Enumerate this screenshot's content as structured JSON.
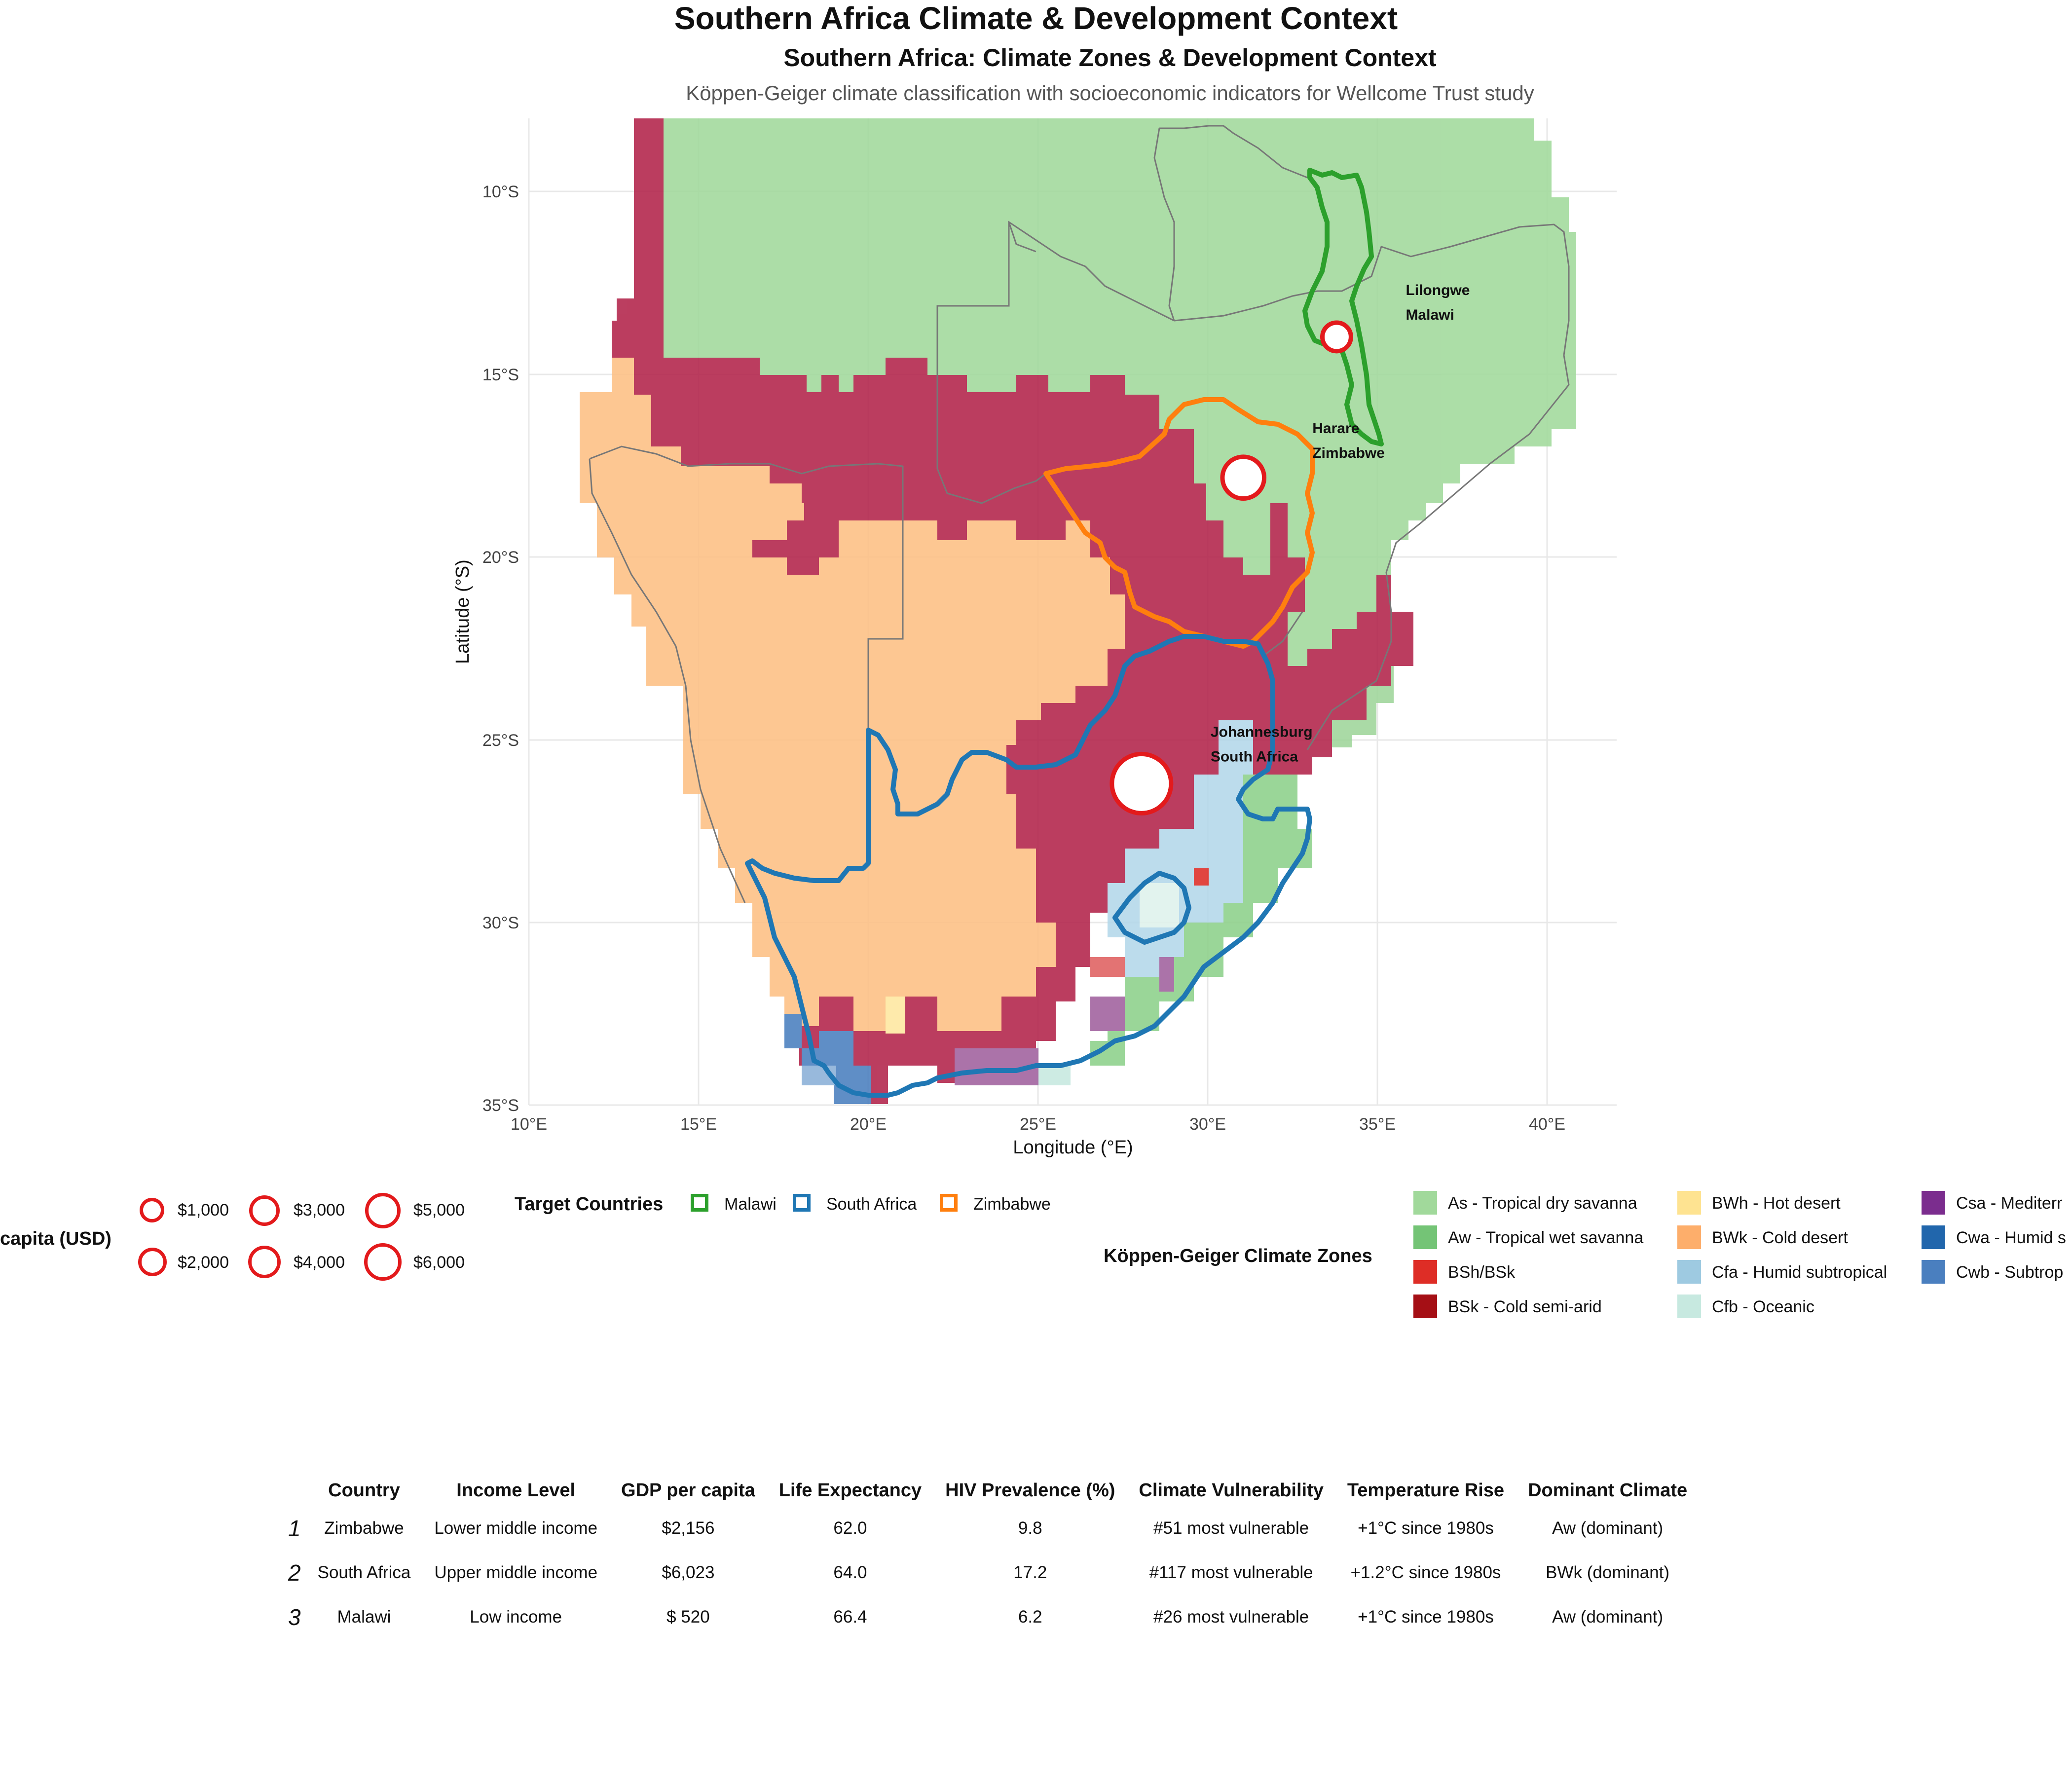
{
  "page": {
    "title": "Southern Africa Climate & Development Context",
    "subtitle": "Southern Africa: Climate Zones & Development Context",
    "caption": "Köppen-Geiger climate classification with socioeconomic indicators for Wellcome Trust study"
  },
  "axes": {
    "xlabel": "Longitude (°E)",
    "ylabel": "Latitude (°S)",
    "xlim": [
      10,
      42
    ],
    "ylim": [
      -35,
      -8
    ],
    "xticks": [
      "10°E",
      "15°E",
      "20°E",
      "25°E",
      "30°E",
      "35°E",
      "40°E"
    ],
    "yticks": [
      "10°S",
      "15°S",
      "20°S",
      "25°S",
      "30°S",
      "35°S"
    ],
    "grid": true
  },
  "cities": [
    {
      "city": "Lilongwe",
      "country": "Malawi",
      "lon": 33.8,
      "lat": -13.98,
      "gdp": 520
    },
    {
      "city": "Harare",
      "country": "Zimbabwe",
      "lon": 31.05,
      "lat": -17.83,
      "gdp": 2156
    },
    {
      "city": "Johannesburg",
      "country": "South Africa",
      "lon": 28.05,
      "lat": -26.2,
      "gdp": 6023
    }
  ],
  "legend_gdp": {
    "title": "capita (USD)",
    "items": [
      "$1,000",
      "$3,000",
      "$5,000",
      "$2,000",
      "$4,000",
      "$6,000"
    ],
    "values": [
      1000,
      3000,
      5000,
      2000,
      4000,
      6000
    ]
  },
  "legend_countries": {
    "title": "Target Countries",
    "items": [
      {
        "name": "Malawi",
        "color": "#2ca02c"
      },
      {
        "name": "South Africa",
        "color": "#1f77b4"
      },
      {
        "name": "Zimbabwe",
        "color": "#ff7f0e"
      }
    ]
  },
  "legend_zones": {
    "title": "Köppen-Geiger Climate Zones",
    "items": [
      {
        "code": "As",
        "label": "As - Tropical dry savanna",
        "color": "#a1d99b"
      },
      {
        "code": "Aw",
        "label": "Aw - Tropical wet savanna",
        "color": "#74c476"
      },
      {
        "code": "BSh",
        "label": "BSh/BSk",
        "color": "#de2d26"
      },
      {
        "code": "BSk",
        "label": "BSk - Cold semi-arid",
        "color": "#a50f15"
      },
      {
        "code": "BWh",
        "label": "BWh - Hot desert",
        "color": "#fee391"
      },
      {
        "code": "BWk",
        "label": "BWk - Cold desert",
        "color": "#fdae6b"
      },
      {
        "code": "Cfa",
        "label": "Cfa - Humid subtropical",
        "color": "#9ecae1"
      },
      {
        "code": "Cfb",
        "label": "Cfb - Oceanic",
        "color": "#c7e9e0"
      },
      {
        "code": "Csa",
        "label": "Csa - Mediterr",
        "color": "#7b2d8e"
      },
      {
        "code": "Cwa",
        "label": "Cwa - Humid s",
        "color": "#2166ac"
      },
      {
        "code": "Cwb",
        "label": "Cwb - Subtrop",
        "color": "#4a7fbf"
      }
    ]
  },
  "table": {
    "headers": [
      "Country",
      "Income Level",
      "GDP per capita",
      "Life Expectancy",
      "HIV Prevalence (%)",
      "Climate Vulnerability",
      "Temperature Rise",
      "Dominant Climate"
    ],
    "rows": [
      {
        "num": "1",
        "cells": [
          "Zimbabwe",
          "Lower middle income",
          "$2,156",
          "62.0",
          "9.8",
          "#51 most vulnerable",
          "+1°C since 1980s",
          "Aw (dominant)"
        ]
      },
      {
        "num": "2",
        "cells": [
          "South Africa",
          "Upper middle income",
          "$6,023",
          "64.0",
          "17.2",
          "#117 most vulnerable",
          "+1.2°C since 1980s",
          "BWk (dominant)"
        ]
      },
      {
        "num": "3",
        "cells": [
          "Malawi",
          "Low income",
          "$  520",
          "66.4",
          "6.2",
          "#26 most vulnerable",
          "+1°C since 1980s",
          "Aw (dominant)"
        ]
      }
    ]
  }
}
